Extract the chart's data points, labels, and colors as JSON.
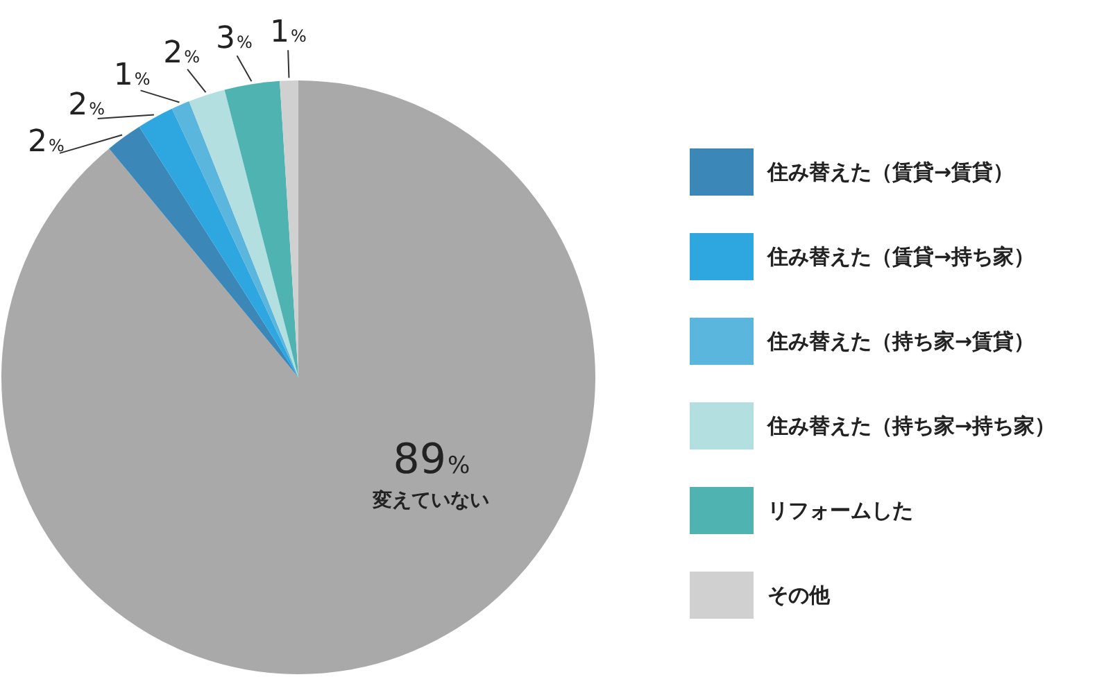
{
  "chart_data": {
    "type": "pie",
    "categories": [
      "変えていない",
      "住み替えた（賃貸→賃貸）",
      "住み替えた（賃貸→持ち家）",
      "住み替えた（持ち家→賃貸）",
      "住み替えた（持ち家→持ち家）",
      "リフォームした",
      "その他"
    ],
    "values": [
      89,
      2,
      2,
      1,
      2,
      3,
      1
    ],
    "colors": [
      "#a9a9a9",
      "#3a87b8",
      "#2ea6e0",
      "#5ab6dc",
      "#b3dfe0",
      "#4fb3b1",
      "#d0d0d0"
    ],
    "value_labels": [
      "89%",
      "2%",
      "2%",
      "1%",
      "2%",
      "3%",
      "1%"
    ],
    "legend": "right"
  }
}
